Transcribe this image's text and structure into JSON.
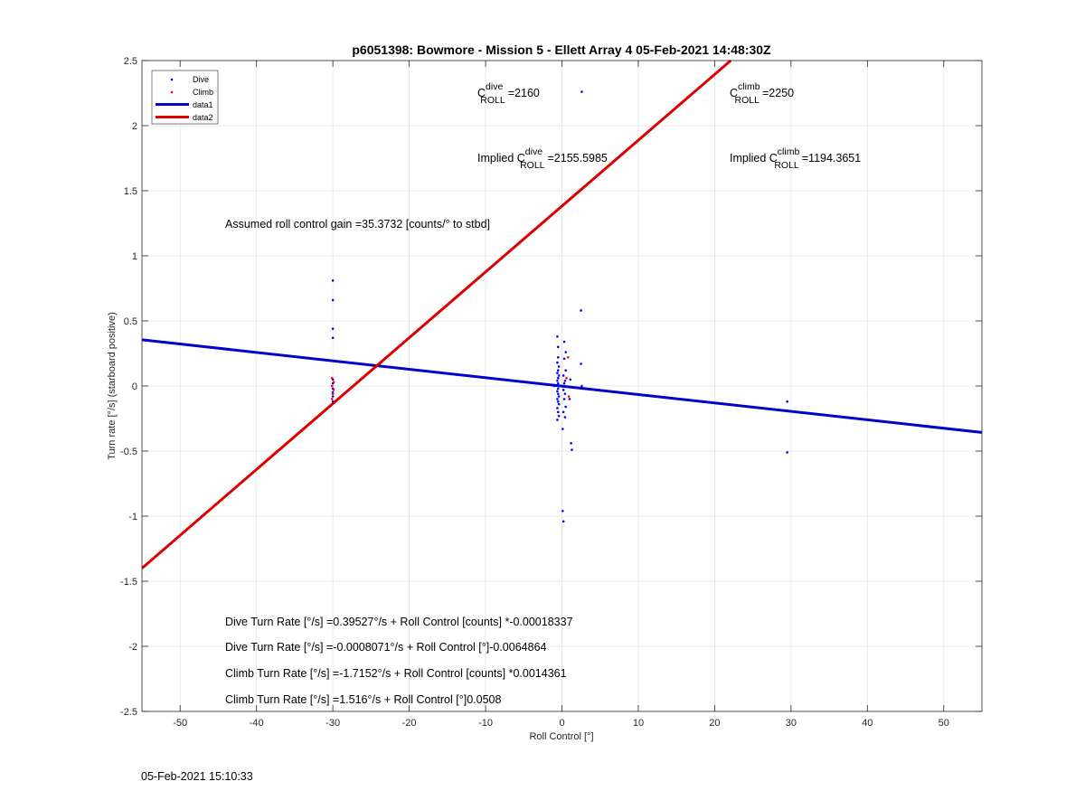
{
  "chart_data": {
    "type": "scatter",
    "title": "p6051398: Bowmore - Mission 5 - Ellett Array 4 05-Feb-2021 14:48:30Z",
    "xlabel": "Roll Control [°]",
    "ylabel": "Turn rate [°/s] (starboard positive)",
    "xlim": [
      -55,
      55
    ],
    "ylim": [
      -2.5,
      2.5
    ],
    "xticks": [
      -50,
      -40,
      -30,
      -20,
      -10,
      0,
      10,
      20,
      30,
      40,
      50
    ],
    "xtick_labels": [
      "-50",
      "-40",
      "-30",
      "-20",
      "-10",
      "0",
      "10",
      "20",
      "30",
      "40",
      "50"
    ],
    "yticks": [
      -2.5,
      -2,
      -1.5,
      -1,
      -0.5,
      0,
      0.5,
      1,
      1.5,
      2,
      2.5
    ],
    "ytick_labels": [
      "-2.5",
      "-2",
      "-1.5",
      "-1",
      "-0.5",
      "0",
      "0.5",
      "1",
      "1.5",
      "2",
      "2.5"
    ],
    "grid": true,
    "legend_position": "top-left",
    "series": [
      {
        "name": "Dive",
        "kind": "points",
        "color": "#0000ff",
        "points": [
          [
            -30,
            0.81
          ],
          [
            -30,
            0.66
          ],
          [
            -30,
            0.44
          ],
          [
            -30,
            0.37
          ],
          [
            -30,
            0.05
          ],
          [
            -30,
            0.02
          ],
          [
            -30,
            -0.02
          ],
          [
            -30,
            -0.05
          ],
          [
            -30,
            -0.08
          ],
          [
            -30,
            -0.12
          ],
          [
            -0.6,
            0.38
          ],
          [
            -0.5,
            0.3
          ],
          [
            -0.5,
            0.22
          ],
          [
            -0.6,
            0.18
          ],
          [
            -0.4,
            0.15
          ],
          [
            -0.5,
            0.12
          ],
          [
            -0.6,
            0.1
          ],
          [
            -0.4,
            0.08
          ],
          [
            -0.5,
            0.06
          ],
          [
            -0.6,
            0.04
          ],
          [
            -0.5,
            0.02
          ],
          [
            -0.4,
            0.0
          ],
          [
            -0.5,
            -0.02
          ],
          [
            -0.6,
            -0.04
          ],
          [
            -0.5,
            -0.06
          ],
          [
            -0.4,
            -0.08
          ],
          [
            -0.6,
            -0.1
          ],
          [
            -0.5,
            -0.12
          ],
          [
            -0.4,
            -0.14
          ],
          [
            -0.6,
            -0.17
          ],
          [
            -0.5,
            -0.2
          ],
          [
            -0.4,
            -0.23
          ],
          [
            -0.6,
            -0.26
          ],
          [
            0.3,
            0.34
          ],
          [
            0.5,
            0.26
          ],
          [
            0.3,
            0.21
          ],
          [
            0.5,
            0.12
          ],
          [
            0.2,
            0.08
          ],
          [
            0.4,
            0.04
          ],
          [
            0.3,
            0.02
          ],
          [
            0.2,
            -0.03
          ],
          [
            0.4,
            -0.06
          ],
          [
            0.3,
            -0.1
          ],
          [
            0.5,
            -0.16
          ],
          [
            0.2,
            -0.2
          ],
          [
            0.4,
            -0.24
          ],
          [
            0.1,
            -0.33
          ],
          [
            1.0,
            -0.1
          ],
          [
            1.1,
            0.05
          ],
          [
            1.2,
            -0.44
          ],
          [
            1.3,
            -0.49
          ],
          [
            0.1,
            -0.96
          ],
          [
            0.2,
            -1.04
          ],
          [
            2.5,
            0.58
          ],
          [
            2.5,
            0.17
          ],
          [
            2.6,
            0.0
          ],
          [
            -1.0,
            0.0
          ],
          [
            2.6,
            2.26
          ],
          [
            29.5,
            -0.12
          ],
          [
            29.5,
            -0.51
          ]
        ]
      },
      {
        "name": "Climb",
        "kind": "points",
        "color": "#ff0000",
        "points": [
          [
            -30.1,
            0.06
          ],
          [
            -29.9,
            0.03
          ],
          [
            -30.1,
            0.0
          ],
          [
            -29.9,
            -0.03
          ],
          [
            -30.0,
            -0.06
          ],
          [
            -30.1,
            -0.1
          ],
          [
            0.8,
            0.22
          ],
          [
            0.6,
            0.06
          ],
          [
            0.9,
            -0.08
          ]
        ]
      },
      {
        "name": "data1",
        "kind": "line",
        "color": "#0000cc",
        "x": [
          -55,
          55
        ],
        "y": [
          0.355,
          -0.357
        ]
      },
      {
        "name": "data2",
        "kind": "line",
        "color": "#dd0000",
        "x": [
          -55,
          22.1
        ],
        "y": [
          -1.4,
          2.5
        ]
      }
    ],
    "annotations": {
      "c_dive": {
        "prefix": "C",
        "sup": "dive",
        "sub": "ROLL",
        "value": "=2160"
      },
      "c_climb": {
        "prefix": "C",
        "sup": "climb",
        "sub": "ROLL",
        "value": "=2250"
      },
      "implied_dive": {
        "prefix": "Implied C",
        "sup": "dive",
        "sub": "ROLL",
        "value": "=2155.5985"
      },
      "implied_climb": {
        "prefix": "Implied C",
        "sup": "climb",
        "sub": "ROLL",
        "value": "=1194.3651"
      },
      "gain": "Assumed roll control gain =35.3732 [counts/° to stbd]",
      "eq1": "Dive Turn Rate [°/s] =0.39527°/s + Roll Control [counts] *-0.00018337",
      "eq2": "Dive Turn Rate [°/s] =-0.0008071°/s + Roll Control [°]-0.0064864",
      "eq3": "Climb Turn Rate [°/s] =-1.7152°/s + Roll Control [counts] *0.0014361",
      "eq4": "Climb Turn Rate [°/s] =1.516°/s + Roll Control [°]0.0508"
    }
  },
  "timestamp": "05-Feb-2021 15:10:33"
}
